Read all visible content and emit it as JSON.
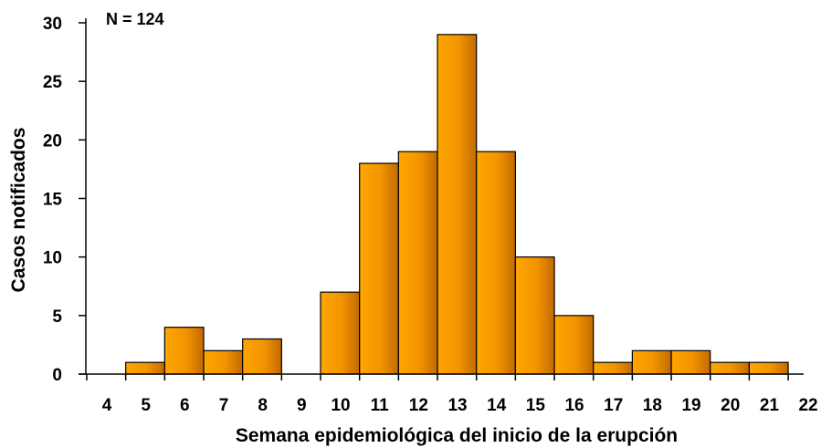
{
  "chart_data": {
    "type": "bar",
    "x": [
      4,
      5,
      6,
      7,
      8,
      9,
      10,
      11,
      12,
      13,
      14,
      15,
      16,
      17,
      18,
      19,
      20,
      21,
      22
    ],
    "bars": [
      {
        "week": 5,
        "value": 1
      },
      {
        "week": 6,
        "value": 4
      },
      {
        "week": 7,
        "value": 2
      },
      {
        "week": 8,
        "value": 3
      },
      {
        "week": 10,
        "value": 7
      },
      {
        "week": 11,
        "value": 18
      },
      {
        "week": 12,
        "value": 19
      },
      {
        "week": 13,
        "value": 29
      },
      {
        "week": 14,
        "value": 19
      },
      {
        "week": 15,
        "value": 10
      },
      {
        "week": 16,
        "value": 5
      },
      {
        "week": 17,
        "value": 1
      },
      {
        "week": 18,
        "value": 2
      },
      {
        "week": 19,
        "value": 2
      },
      {
        "week": 20,
        "value": 1
      },
      {
        "week": 21,
        "value": 1
      }
    ],
    "xlabel": "Semana epidemiológica del inicio de la erupción",
    "ylabel": "Casos notificados",
    "ylim": [
      0,
      30
    ],
    "yticks": [
      0,
      5,
      10,
      15,
      20,
      25,
      30
    ],
    "annotation": "N = 124",
    "grid": false,
    "bar_color": "#f29400",
    "bar_edge_color": "#000000"
  }
}
